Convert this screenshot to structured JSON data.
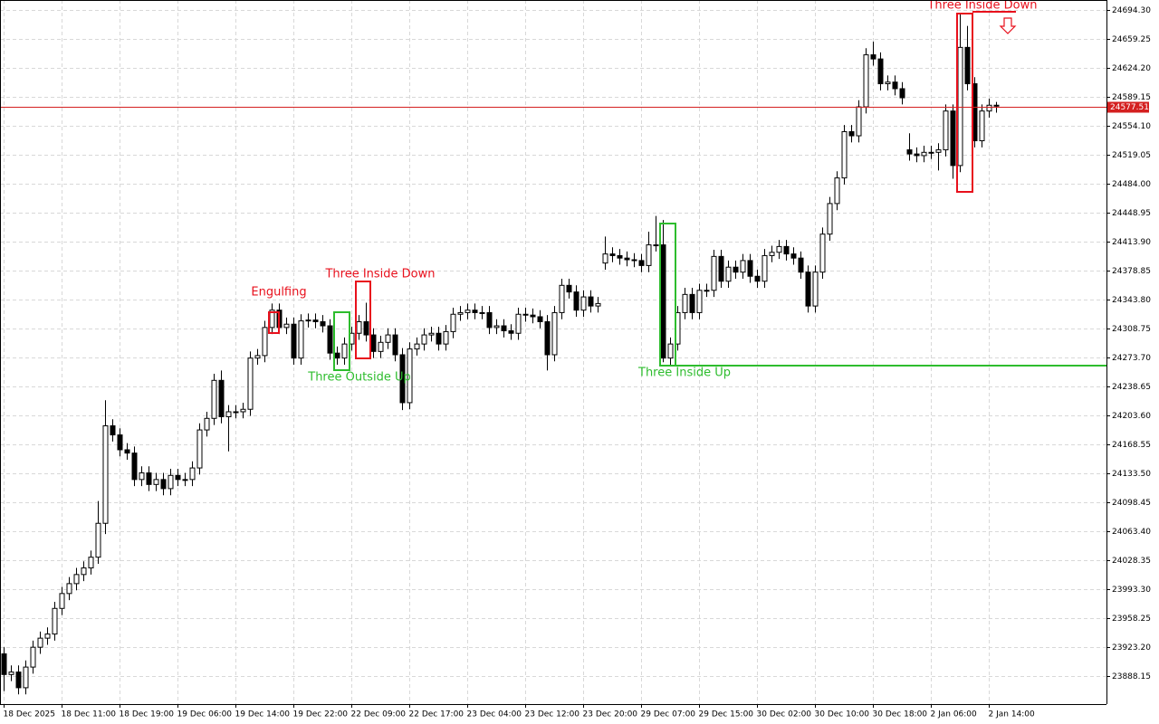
{
  "chart_data": {
    "type": "candlestick",
    "categories": [
      "18 Dec 2025",
      null,
      null,
      null,
      null,
      null,
      null,
      null,
      "18 Dec 11:00",
      null,
      null,
      null,
      null,
      null,
      null,
      null,
      "18 Dec 19:00",
      null,
      null,
      null,
      null,
      null,
      null,
      null,
      "19 Dec 06:00",
      null,
      null,
      null,
      null,
      null,
      null,
      null,
      "19 Dec 14:00",
      null,
      null,
      null,
      null,
      null,
      null,
      null,
      "19 Dec 22:00",
      null,
      null,
      null,
      null,
      null,
      null,
      null,
      "22 Dec 09:00",
      null,
      null,
      null,
      null,
      null,
      null,
      null,
      "22 Dec 17:00",
      null,
      null,
      null,
      null,
      null,
      null,
      null,
      "23 Dec 04:00",
      null,
      null,
      null,
      null,
      null,
      null,
      null,
      "23 Dec 12:00",
      null,
      null,
      null,
      null,
      null,
      null,
      null,
      "23 Dec 20:00",
      null,
      null,
      null,
      null,
      null,
      null,
      null,
      "29 Dec 07:00",
      null,
      null,
      null,
      null,
      null,
      null,
      null,
      "29 Dec 15:00",
      null,
      null,
      null,
      null,
      null,
      null,
      null,
      "30 Dec 02:00",
      null,
      null,
      null,
      null,
      null,
      null,
      null,
      "30 Dec 10:00",
      null,
      null,
      null,
      null,
      null,
      null,
      null,
      "30 Dec 18:00",
      null,
      null,
      null,
      null,
      null,
      null,
      null,
      "2 Jan 06:00",
      null,
      null,
      null,
      null,
      null,
      null,
      null,
      "2 Jan 14:00",
      null
    ],
    "open": [
      23915,
      23890,
      23893,
      23874,
      23899,
      23923,
      23934,
      23939,
      23970,
      23988,
      24000,
      24011,
      24019,
      24032,
      24073,
      24191,
      24180,
      24162,
      24158,
      24126,
      24134,
      24120,
      24126,
      24115,
      24131,
      24126,
      24126,
      24140,
      24186,
      24200,
      24246,
      24202,
      24208,
      24208,
      24211,
      24273,
      24276,
      24310,
      24331,
      24310,
      24314,
      24273,
      24318,
      24319,
      24317,
      24312,
      24279,
      24273,
      24290,
      24303,
      24317,
      24301,
      24281,
      24292,
      24301,
      24277,
      24219,
      24284,
      24290,
      24301,
      24303,
      24290,
      24305,
      24326,
      24328,
      24331,
      24328,
      24328,
      24310,
      24312,
      24306,
      24303,
      24326,
      24325,
      24323,
      24317,
      24277,
      24328,
      24361,
      24353,
      24331,
      24347,
      24336,
      24388,
      24399,
      24397,
      24394,
      24392,
      24391,
      24385,
      24410,
      24410,
      24273,
      24290,
      24328,
      24350,
      24328,
      24355,
      24355,
      24396,
      24366,
      24383,
      24377,
      24391,
      24372,
      24366,
      24397,
      24401,
      24408,
      24399,
      24394,
      24377,
      24336,
      24377,
      24423,
      24460,
      24491,
      24547,
      24542,
      24577,
      24640,
      24635,
      24605,
      24607,
      24599,
      24525,
      24520,
      24518,
      24522,
      24522,
      24525,
      24572,
      24506,
      24649,
      24605,
      24536,
      24572,
      24579
    ],
    "high": [
      23923,
      23901,
      23901,
      23907,
      23931,
      23942,
      23947,
      23978,
      23996,
      24008,
      24019,
      24027,
      24040,
      24100,
      24222,
      24199,
      24188,
      24170,
      24166,
      24142,
      24142,
      24134,
      24134,
      24139,
      24139,
      24134,
      24148,
      24194,
      24208,
      24254,
      24258,
      24216,
      24216,
      24219,
      24281,
      24284,
      24318,
      24339,
      24339,
      24322,
      24322,
      24326,
      24327,
      24327,
      24325,
      24320,
      24287,
      24298,
      24311,
      24325,
      24340,
      24309,
      24300,
      24309,
      24309,
      24285,
      24292,
      24298,
      24309,
      24311,
      24311,
      24313,
      24334,
      24336,
      24339,
      24339,
      24336,
      24336,
      24320,
      24320,
      24314,
      24334,
      24334,
      24333,
      24331,
      24325,
      24336,
      24369,
      24369,
      24361,
      24355,
      24355,
      24347,
      24420,
      24407,
      24405,
      24402,
      24400,
      24399,
      24426,
      24445,
      24440,
      24298,
      24336,
      24358,
      24358,
      24363,
      24363,
      24404,
      24404,
      24391,
      24391,
      24399,
      24399,
      24380,
      24405,
      24409,
      24416,
      24416,
      24407,
      24402,
      24385,
      24385,
      24431,
      24468,
      24499,
      24555,
      24555,
      24585,
      24648,
      24656,
      24643,
      24615,
      24615,
      24607,
      24545,
      24528,
      24530,
      24530,
      24533,
      24580,
      24580,
      24690,
      24675,
      24613,
      24580,
      24587,
      24583
    ],
    "low": [
      23870,
      23882,
      23866,
      23866,
      23891,
      23915,
      23926,
      23931,
      23962,
      23980,
      23992,
      24003,
      24011,
      24024,
      24060,
      24172,
      24154,
      24150,
      24118,
      24118,
      24112,
      24112,
      24107,
      24107,
      24118,
      24118,
      24118,
      24132,
      24178,
      24192,
      24194,
      24160,
      24200,
      24200,
      24203,
      24265,
      24268,
      24302,
      24302,
      24302,
      24265,
      24265,
      24310,
      24309,
      24304,
      24271,
      24265,
      24265,
      24282,
      24295,
      24293,
      24273,
      24273,
      24284,
      24269,
      24210,
      24211,
      24276,
      24282,
      24293,
      24282,
      24282,
      24297,
      24318,
      24320,
      24320,
      24320,
      24302,
      24302,
      24298,
      24295,
      24295,
      24317,
      24315,
      24309,
      24258,
      24269,
      24320,
      24345,
      24323,
      24323,
      24328,
      24328,
      24380,
      24389,
      24386,
      24384,
      24383,
      24377,
      24377,
      24402,
      24268,
      24265,
      24282,
      24320,
      24320,
      24320,
      24347,
      24347,
      24358,
      24358,
      24369,
      24369,
      24364,
      24358,
      24358,
      24389,
      24393,
      24391,
      24386,
      24369,
      24328,
      24328,
      24369,
      24415,
      24452,
      24483,
      24534,
      24534,
      24569,
      24627,
      24597,
      24597,
      24591,
      24580,
      24512,
      24510,
      24510,
      24514,
      24500,
      24517,
      24490,
      24498,
      24597,
      24528,
      24528,
      24564,
      24570
    ],
    "close": [
      23890,
      23893,
      23874,
      23899,
      23923,
      23934,
      23939,
      23970,
      23988,
      24000,
      24011,
      24019,
      24032,
      24073,
      24191,
      24180,
      24162,
      24158,
      24126,
      24134,
      24120,
      24126,
      24115,
      24131,
      24126,
      24126,
      24140,
      24186,
      24200,
      24246,
      24202,
      24208,
      24208,
      24211,
      24273,
      24276,
      24310,
      24331,
      24310,
      24314,
      24273,
      24318,
      24319,
      24317,
      24312,
      24279,
      24273,
      24290,
      24303,
      24317,
      24301,
      24281,
      24292,
      24301,
      24277,
      24219,
      24284,
      24290,
      24301,
      24303,
      24290,
      24305,
      24326,
      24328,
      24331,
      24328,
      24328,
      24310,
      24312,
      24306,
      24303,
      24326,
      24325,
      24323,
      24317,
      24277,
      24328,
      24361,
      24353,
      24331,
      24347,
      24336,
      24339,
      24399,
      24397,
      24394,
      24392,
      24391,
      24385,
      24410,
      24410,
      24273,
      24290,
      24328,
      24350,
      24328,
      24355,
      24355,
      24396,
      24366,
      24383,
      24377,
      24391,
      24372,
      24366,
      24397,
      24401,
      24408,
      24399,
      24394,
      24377,
      24336,
      24377,
      24423,
      24460,
      24491,
      24547,
      24542,
      24577,
      24640,
      24635,
      24605,
      24607,
      24599,
      24588,
      24520,
      24518,
      24522,
      24522,
      24525,
      24572,
      24506,
      24649,
      24605,
      24536,
      24572,
      24579,
      24578
    ],
    "ylim": [
      23854.2,
      24706.35
    ],
    "yticks": [
      {
        "value": 24694.3,
        "label": "24694.30"
      },
      24659.25,
      {
        "value": 24624.2,
        "label": "24624.20"
      },
      24589.15,
      {
        "value": 24554.1,
        "label": "24554.10"
      },
      24519.05,
      {
        "value": 24484,
        "label": "24484.00"
      },
      24448.95,
      {
        "value": 24413.9,
        "label": "24413.90"
      },
      24378.85,
      {
        "value": 24343.8,
        "label": "24343.80"
      },
      24308.75,
      {
        "value": 24273.7,
        "label": "24273.70"
      },
      24238.65,
      {
        "value": 24203.6,
        "label": "24203.60"
      },
      24168.55,
      {
        "value": 24133.5,
        "label": "24133.50"
      },
      24098.45,
      {
        "value": 24063.4,
        "label": "24063.40"
      },
      24028.35,
      {
        "value": 23993.3,
        "label": "23993.30"
      },
      23958.25,
      {
        "value": 23923.2,
        "label": "23923.20"
      },
      23888.15
    ],
    "current_price": 24577.51,
    "current_price_color": "#d42020",
    "up_color": "#ffffff",
    "down_color": "#000000",
    "grid": true,
    "annotations": [
      {
        "text": "Engulfing",
        "color": "#e8101c"
      },
      {
        "text": "Three Inside Down",
        "color": "#e8101c"
      },
      {
        "text": "Three Outside Up",
        "color": "#2ebd2e"
      },
      {
        "text": "Three Inside Up",
        "color": "#2ebd2e"
      },
      {
        "text": "Three Inside Down",
        "color": "#e8101c"
      }
    ]
  }
}
